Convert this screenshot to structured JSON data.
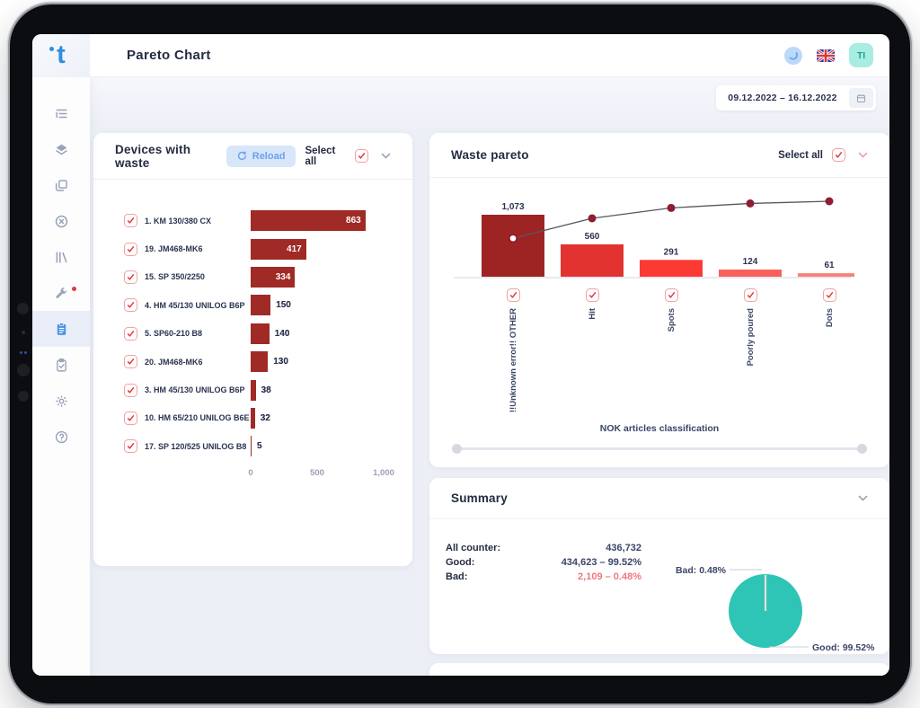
{
  "header": {
    "title": "Pareto Chart",
    "avatar_initials": "TI",
    "icons": [
      "theme-icon",
      "uk-flag-icon",
      "avatar-badge"
    ]
  },
  "toolbar": {
    "date_range": "09.12.2022 – 16.12.2022",
    "calendar_icon": "calendar-icon"
  },
  "sidebar": {
    "items": [
      {
        "name": "tree-list-icon",
        "active": false,
        "badge": false
      },
      {
        "name": "layers-icon",
        "active": false,
        "badge": false
      },
      {
        "name": "windows-copy-icon",
        "active": false,
        "badge": false
      },
      {
        "name": "close-circle-icon",
        "active": false,
        "badge": false
      },
      {
        "name": "library-icon",
        "active": false,
        "badge": false
      },
      {
        "name": "wrench-icon",
        "active": false,
        "badge": true
      },
      {
        "name": "clipboard-icon",
        "active": true,
        "badge": false
      },
      {
        "name": "clipboard-check-icon",
        "active": false,
        "badge": false
      },
      {
        "name": "gear-icon",
        "active": false,
        "badge": false
      },
      {
        "name": "help-icon",
        "active": false,
        "badge": false
      }
    ]
  },
  "devices_panel": {
    "title": "Devices with waste",
    "reload_label": "Reload",
    "select_all_label": "Select all"
  },
  "pareto_panel": {
    "title": "Waste pareto",
    "select_all_label": "Select all"
  },
  "summary_panel": {
    "title": "Summary",
    "stats": [
      {
        "label": "All counter:",
        "value": "436,732",
        "highlight": false
      },
      {
        "label": "Good:",
        "value": "434,623 – 99.52%",
        "highlight": false
      },
      {
        "label": "Bad:",
        "value": "2,109 – 0.48%",
        "highlight": true
      }
    ]
  },
  "chart_data": [
    {
      "id": "devices_with_waste",
      "type": "bar",
      "orientation": "horizontal",
      "title": "Devices with waste",
      "categories": [
        "1. KM 130/380 CX",
        "19. JM468-MK6",
        "15. SP 350/2250",
        "4. HM 45/130 UNILOG B6P",
        "5. SP60-210 B8",
        "20. JM468-MK6",
        "3. HM 45/130 UNILOG B6P",
        "10. HM 65/210 UNILOG B6E",
        "17. SP 120/525 UNILOG B8"
      ],
      "values": [
        863,
        417,
        334,
        150,
        140,
        130,
        38,
        32,
        5
      ],
      "xlim": [
        0,
        1000
      ],
      "x_ticks": [
        "0",
        "500",
        "1,000"
      ],
      "bar_color": "#a02a25",
      "checkboxes_checked": true
    },
    {
      "id": "waste_pareto",
      "type": "pareto",
      "title": "Waste pareto",
      "categories": [
        "!!Unknown error!! OTHER",
        "Hit",
        "Spots",
        "Poorly poured",
        "Dots"
      ],
      "values": [
        1073,
        560,
        291,
        124,
        61
      ],
      "value_labels": [
        "1,073",
        "560",
        "291",
        "124",
        "61"
      ],
      "cumulative_pct": [
        50.9,
        77.4,
        91.2,
        97.1,
        100
      ],
      "bar_colors": [
        "#9e2423",
        "#e23330",
        "#fb3a34",
        "#f8615b",
        "#fa827b"
      ],
      "line_color": "#55595e",
      "dot_color": "#8e1e31",
      "xlabel": "NOK articles classification",
      "checkboxes_checked": true
    },
    {
      "id": "summary_pie",
      "type": "pie",
      "slices": [
        {
          "label": "Good",
          "pct": 99.52,
          "color": "#2ec4b6"
        },
        {
          "label": "Bad",
          "pct": 0.48,
          "color": "#f6dbd6"
        }
      ],
      "labels": {
        "bad": "Bad: 0.48%",
        "good": "Good: 99.52%"
      }
    }
  ],
  "colors": {
    "accent_blue": "#4a90e2",
    "accent_red": "#e5383b",
    "teal": "#2ec4b6",
    "panel_bg": "#ffffff",
    "content_bg": "#edeff7",
    "text_dark": "#252b42",
    "text_muted": "#9aa0b5"
  }
}
